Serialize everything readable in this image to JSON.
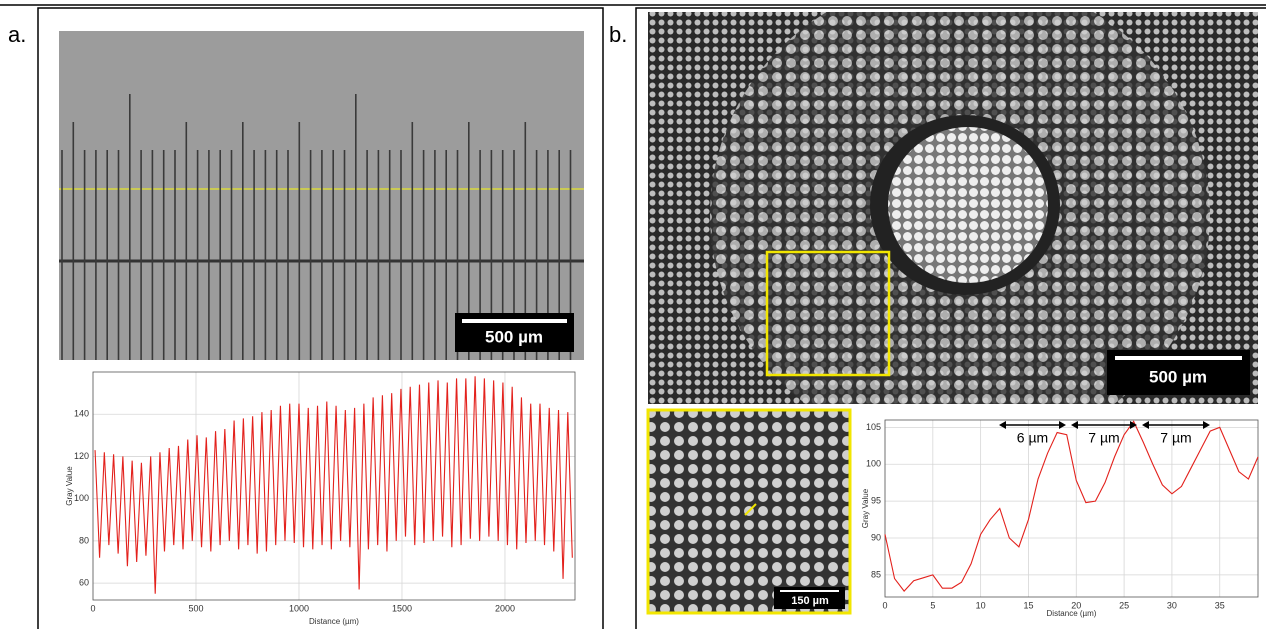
{
  "panels": [
    {
      "label": "a.",
      "scale_bar": "500 µm"
    },
    {
      "label": "b.",
      "scale_bar": "500 µm",
      "inset_scale_bar": "150 µm"
    }
  ],
  "chart_data": [
    {
      "type": "line",
      "x_label": "Distance (µm)",
      "y_label": "Gray Value",
      "xlim": [
        0,
        2340
      ],
      "ylim": [
        52,
        160
      ],
      "xticks": [
        0,
        500,
        1000,
        1500,
        2000
      ],
      "yticks": [
        60,
        80,
        100,
        120,
        140
      ],
      "grid": true,
      "x": [
        10,
        32,
        55,
        77,
        100,
        122,
        145,
        167,
        190,
        212,
        235,
        257,
        280,
        302,
        325,
        347,
        370,
        392,
        415,
        437,
        460,
        482,
        505,
        527,
        550,
        572,
        595,
        617,
        640,
        662,
        685,
        707,
        730,
        752,
        775,
        797,
        820,
        842,
        865,
        887,
        910,
        932,
        955,
        977,
        1000,
        1022,
        1045,
        1067,
        1090,
        1112,
        1135,
        1157,
        1180,
        1202,
        1225,
        1247,
        1270,
        1292,
        1315,
        1337,
        1360,
        1382,
        1405,
        1427,
        1450,
        1472,
        1495,
        1517,
        1540,
        1562,
        1585,
        1607,
        1630,
        1652,
        1675,
        1697,
        1720,
        1742,
        1765,
        1787,
        1810,
        1832,
        1855,
        1877,
        1900,
        1922,
        1945,
        1967,
        1990,
        2012,
        2035,
        2057,
        2080,
        2102,
        2125,
        2147,
        2170,
        2192,
        2215,
        2237,
        2260,
        2282,
        2305,
        2327
      ],
      "series": [
        {
          "color": "#e3211c",
          "values": [
            123,
            72,
            122,
            78,
            121,
            74,
            120,
            68,
            118,
            70,
            117,
            73,
            120,
            55,
            122,
            75,
            124,
            78,
            125,
            76,
            128,
            80,
            130,
            77,
            129,
            75,
            132,
            78,
            133,
            80,
            137,
            76,
            138,
            78,
            139,
            74,
            141,
            75,
            142,
            78,
            144,
            80,
            145,
            79,
            145,
            77,
            143,
            76,
            144,
            78,
            146,
            76,
            144,
            80,
            142,
            77,
            143,
            57,
            145,
            76,
            148,
            78,
            149,
            75,
            150,
            80,
            152,
            82,
            153,
            78,
            154,
            79,
            155,
            80,
            156,
            82,
            155,
            77,
            157,
            78,
            157,
            81,
            158,
            80,
            157,
            82,
            156,
            80,
            155,
            78,
            153,
            76,
            148,
            79,
            145,
            80,
            145,
            78,
            143,
            75,
            142,
            62,
            141,
            72
          ]
        }
      ]
    },
    {
      "type": "line",
      "x_label": "Distance (µm)",
      "y_label": "Gray Value",
      "xlim": [
        0,
        39
      ],
      "ylim": [
        82,
        106
      ],
      "xticks": [
        0,
        5,
        10,
        15,
        20,
        25,
        30,
        35
      ],
      "yticks": [
        85,
        90,
        95,
        100,
        105
      ],
      "grid": true,
      "annotations": [
        "6 µm",
        "7 µm",
        "7 µm"
      ],
      "x": [
        0,
        1,
        2,
        3,
        4,
        5,
        6,
        7,
        8,
        9,
        10,
        11,
        12,
        13,
        14,
        15,
        16,
        17,
        18,
        19,
        20,
        21,
        22,
        23,
        24,
        25,
        26,
        27,
        28,
        29,
        30,
        31,
        32,
        33,
        34,
        35,
        36,
        37,
        38,
        39
      ],
      "series": [
        {
          "color": "#e3211c",
          "values": [
            90.5,
            84.5,
            82.8,
            84.2,
            84.6,
            85,
            83.2,
            83.2,
            84,
            86.5,
            90.5,
            92.5,
            94,
            90,
            88.8,
            92.5,
            98,
            101.5,
            104.3,
            104,
            97.8,
            94.8,
            95,
            97.5,
            101,
            104,
            105.8,
            103,
            100,
            97.2,
            96,
            97,
            99.5,
            102,
            104.5,
            105,
            102,
            99,
            98,
            101
          ]
        }
      ]
    }
  ]
}
